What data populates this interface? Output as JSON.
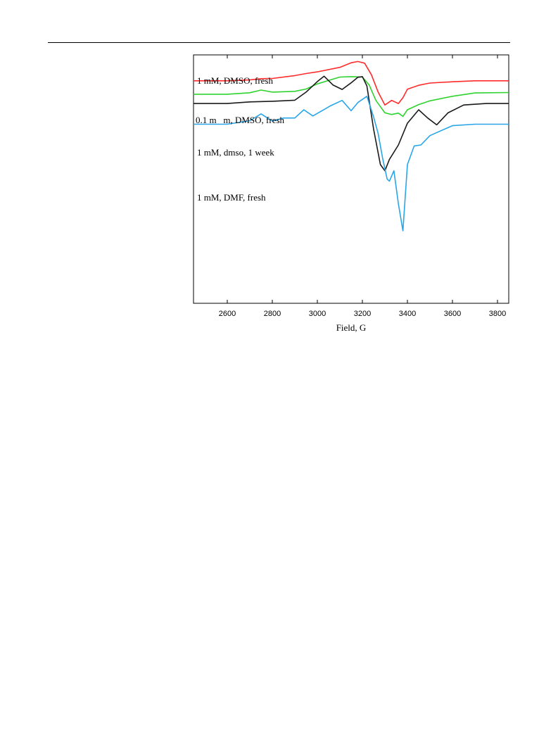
{
  "chart_data": {
    "type": "line",
    "title": "",
    "xlabel": "Field, G",
    "ylabel": "",
    "xlim": [
      2450,
      3850
    ],
    "ylim": [
      -20,
      100
    ],
    "xticks": [
      2600,
      2800,
      3000,
      3200,
      3400,
      3600,
      3800
    ],
    "grid": false,
    "legend": "inline labels at left of each trace",
    "series": [
      {
        "name": "1 mM, DMSO, fresh",
        "color": "#ff2b2b",
        "x": [
          2450,
          2600,
          2700,
          2750,
          2800,
          2900,
          2950,
          3000,
          3100,
          3150,
          3180,
          3210,
          3240,
          3270,
          3300,
          3330,
          3360,
          3380,
          3400,
          3450,
          3500,
          3600,
          3700,
          3850
        ],
        "y": [
          87.5,
          87.5,
          87.9,
          88.5,
          88.6,
          90.0,
          91.0,
          91.8,
          94.0,
          96.2,
          96.8,
          96.0,
          90.4,
          82.0,
          75.8,
          78.0,
          76.5,
          79.3,
          83.4,
          85.3,
          86.4,
          87.0,
          87.5,
          87.5
        ]
      },
      {
        "name": "0.1 m m, DMSO, fresh",
        "color": "#2ed32e",
        "x": [
          2450,
          2600,
          2700,
          2750,
          2800,
          2900,
          2950,
          3000,
          3100,
          3150,
          3200,
          3230,
          3260,
          3300,
          3330,
          3360,
          3380,
          3400,
          3450,
          3500,
          3600,
          3700,
          3850
        ],
        "y": [
          81.0,
          81.0,
          81.7,
          83.0,
          82.0,
          82.4,
          83.5,
          86.0,
          89.3,
          89.5,
          89.3,
          85.5,
          78.0,
          72.0,
          71.2,
          71.9,
          70.3,
          73.5,
          76.0,
          77.8,
          80.0,
          81.6,
          81.8
        ]
      },
      {
        "name": "1 mM, dmso, 1 week",
        "color": "#1a1a1a",
        "x": [
          2450,
          2600,
          2700,
          2800,
          2900,
          2950,
          3000,
          3030,
          3070,
          3110,
          3150,
          3180,
          3200,
          3220,
          3250,
          3280,
          3300,
          3320,
          3360,
          3400,
          3450,
          3490,
          3530,
          3580,
          3650,
          3750,
          3850
        ],
        "y": [
          76.5,
          76.5,
          77.3,
          77.6,
          78.1,
          82.0,
          87.1,
          89.7,
          85.4,
          83.3,
          86.5,
          89.2,
          89.5,
          85.0,
          64.0,
          47.0,
          44.0,
          49.5,
          56.5,
          67.0,
          73.5,
          69.5,
          66.2,
          72.0,
          75.8,
          76.5,
          76.5
        ]
      },
      {
        "name": "1 mM, DMF, fresh",
        "color": "#28a6e8",
        "x": [
          2450,
          2600,
          2700,
          2750,
          2800,
          2850,
          2900,
          2940,
          2980,
          3020,
          3060,
          3110,
          3150,
          3180,
          3220,
          3250,
          3270,
          3290,
          3310,
          3320,
          3340,
          3360,
          3380,
          3400,
          3430,
          3460,
          3500,
          3600,
          3700,
          3850
        ],
        "y": [
          66.5,
          66.5,
          68.2,
          71.5,
          68.0,
          69.5,
          69.5,
          73.5,
          70.5,
          73.0,
          75.5,
          78.0,
          73.0,
          77.0,
          80.0,
          70.0,
          62.0,
          50.0,
          40.0,
          39.0,
          44.0,
          28.0,
          15.0,
          47.0,
          56.0,
          56.5,
          61.0,
          65.8,
          66.5,
          66.5
        ]
      }
    ]
  }
}
